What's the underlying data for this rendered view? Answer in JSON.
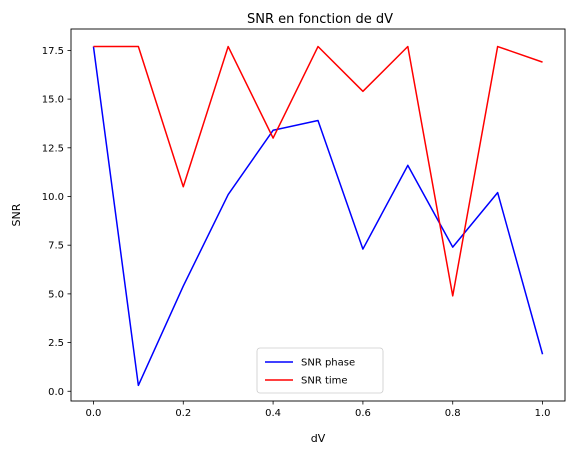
{
  "chart_data": {
    "type": "line",
    "title": "SNR en fonction de dV",
    "xlabel": "dV",
    "ylabel": "SNR",
    "xlim": [
      -0.05,
      1.05
    ],
    "ylim": [
      -0.5,
      18.6
    ],
    "x": [
      0.0,
      0.1,
      0.2,
      0.3,
      0.4,
      0.5,
      0.6,
      0.7,
      0.8,
      0.9,
      1.0
    ],
    "xticks": [
      0.0,
      0.2,
      0.4,
      0.6,
      0.8,
      1.0
    ],
    "xtick_labels": [
      "0.0",
      "0.2",
      "0.4",
      "0.6",
      "0.8",
      "1.0"
    ],
    "yticks": [
      0.0,
      2.5,
      5.0,
      7.5,
      10.0,
      12.5,
      15.0,
      17.5
    ],
    "ytick_labels": [
      "0.0",
      "2.5",
      "5.0",
      "7.5",
      "10.0",
      "12.5",
      "15.0",
      "17.5"
    ],
    "grid": false,
    "legend": "bottom-center",
    "series": [
      {
        "name": "SNR phase",
        "color": "#0000ff",
        "values": [
          17.7,
          0.3,
          5.4,
          10.1,
          13.4,
          13.9,
          7.3,
          11.6,
          7.4,
          10.2,
          1.9
        ]
      },
      {
        "name": "SNR time",
        "color": "#ff0000",
        "values": [
          17.7,
          17.7,
          10.5,
          17.7,
          13.0,
          17.7,
          15.4,
          17.7,
          4.9,
          17.7,
          16.9
        ]
      }
    ]
  }
}
